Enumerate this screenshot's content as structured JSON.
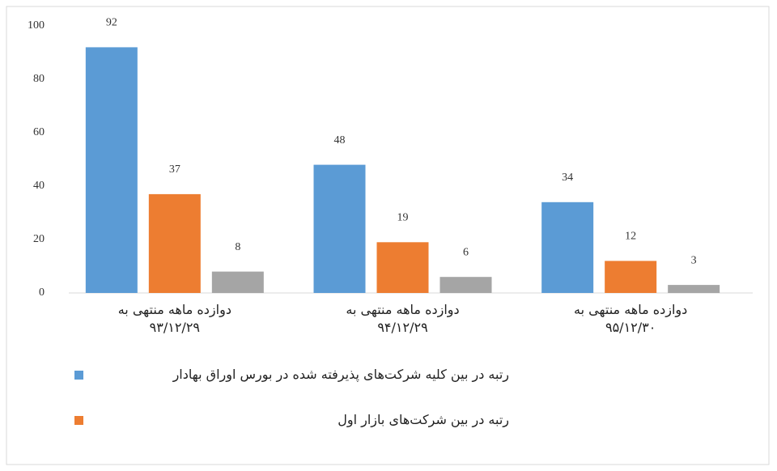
{
  "chart_data": {
    "type": "bar",
    "categories": [
      "دوازده ماهه منتهی به\n۹۳/۱۲/۲۹",
      "دوازده ماهه منتهی به\n۹۴/۱۲/۲۹",
      "دوازده ماهه منتهی به\n۹۵/۱۲/۳۰"
    ],
    "series": [
      {
        "name": "رتبه در بین کلیه شرکت‌های پذیرفته شده در بورس اوراق بهادار",
        "color": "#5b9bd5",
        "values": [
          92,
          48,
          34
        ]
      },
      {
        "name": "رتبه در بین شرکت‌های بازار اول",
        "color": "#ed7d31",
        "values": [
          37,
          19,
          12
        ]
      },
      {
        "color": "#a5a5a5",
        "values": [
          8,
          6,
          3
        ]
      }
    ],
    "ylim": [
      0,
      100
    ],
    "yticks": [
      0,
      20,
      40,
      60,
      80,
      100
    ],
    "grid": false,
    "legend": "bottom-left"
  }
}
